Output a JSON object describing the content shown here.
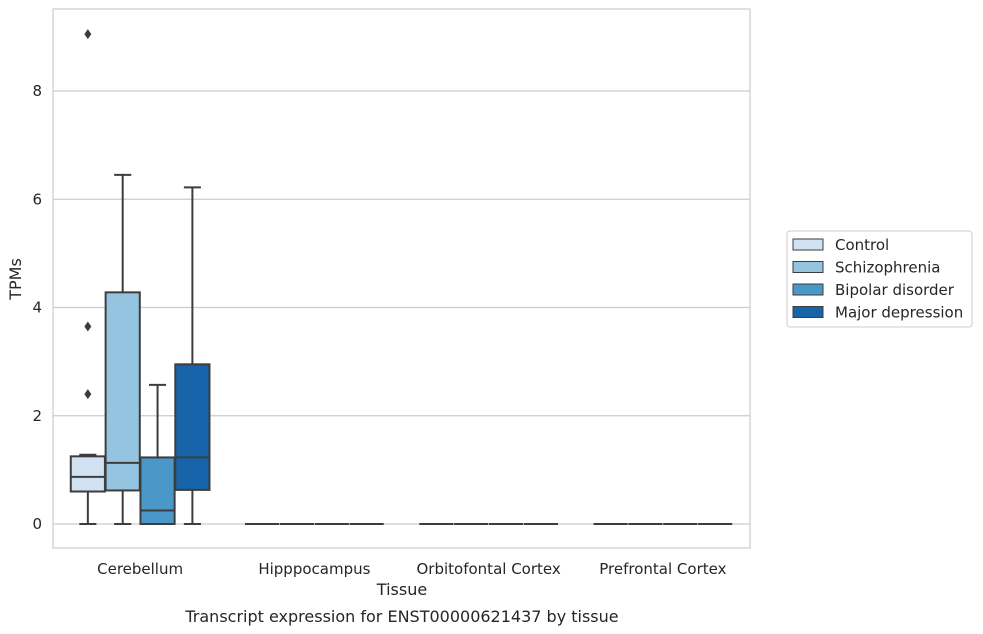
{
  "caption": "Transcript expression for ENST00000621437 by tissue",
  "chart_data": {
    "type": "box",
    "xlabel": "Tissue",
    "ylabel": "TPMs",
    "ylim": [
      -0.45,
      9.6
    ],
    "yticks": [
      0,
      2,
      4,
      6,
      8
    ],
    "grid": "horizontal",
    "legend_placement": "center-right outside",
    "categories": [
      "Cerebellum",
      "Hipppocampus",
      "Orbitofontal Cortex",
      "Prefrontal Cortex"
    ],
    "series": [
      {
        "name": "Control",
        "color": "#d0e1f2",
        "boxes": [
          {
            "whisker_low": 0.0,
            "q1": 0.6,
            "median": 0.87,
            "q3": 1.25,
            "whisker_high": 1.28,
            "outliers": [
              9.05,
              3.65,
              2.4
            ]
          },
          {
            "whisker_low": 0,
            "q1": 0,
            "median": 0,
            "q3": 0,
            "whisker_high": 0,
            "outliers": []
          },
          {
            "whisker_low": 0,
            "q1": 0,
            "median": 0,
            "q3": 0,
            "whisker_high": 0,
            "outliers": []
          },
          {
            "whisker_low": 0,
            "q1": 0,
            "median": 0,
            "q3": 0,
            "whisker_high": 0,
            "outliers": []
          }
        ]
      },
      {
        "name": "Schizophrenia",
        "color": "#94c4df",
        "boxes": [
          {
            "whisker_low": 0.0,
            "q1": 0.62,
            "median": 1.13,
            "q3": 4.28,
            "whisker_high": 6.45,
            "outliers": []
          },
          {
            "whisker_low": 0,
            "q1": 0,
            "median": 0,
            "q3": 0,
            "whisker_high": 0,
            "outliers": []
          },
          {
            "whisker_low": 0,
            "q1": 0,
            "median": 0,
            "q3": 0,
            "whisker_high": 0,
            "outliers": []
          },
          {
            "whisker_low": 0,
            "q1": 0,
            "median": 0,
            "q3": 0,
            "whisker_high": 0,
            "outliers": []
          }
        ]
      },
      {
        "name": "Bipolar disorder",
        "color": "#4a98c9",
        "boxes": [
          {
            "whisker_low": 0.0,
            "q1": 0.0,
            "median": 0.25,
            "q3": 1.23,
            "whisker_high": 2.57,
            "outliers": []
          },
          {
            "whisker_low": 0,
            "q1": 0,
            "median": 0,
            "q3": 0,
            "whisker_high": 0,
            "outliers": []
          },
          {
            "whisker_low": 0,
            "q1": 0,
            "median": 0,
            "q3": 0,
            "whisker_high": 0,
            "outliers": []
          },
          {
            "whisker_low": 0,
            "q1": 0,
            "median": 0,
            "q3": 0,
            "whisker_high": 0,
            "outliers": []
          }
        ]
      },
      {
        "name": "Major depression",
        "color": "#1764ab",
        "boxes": [
          {
            "whisker_low": 0.0,
            "q1": 0.63,
            "median": 1.23,
            "q3": 2.95,
            "whisker_high": 6.22,
            "outliers": []
          },
          {
            "whisker_low": 0,
            "q1": 0,
            "median": 0,
            "q3": 0,
            "whisker_high": 0,
            "outliers": []
          },
          {
            "whisker_low": 0,
            "q1": 0,
            "median": 0,
            "q3": 0,
            "whisker_high": 0,
            "outliers": []
          },
          {
            "whisker_low": 0,
            "q1": 0,
            "median": 0,
            "q3": 0,
            "whisker_high": 0,
            "outliers": []
          }
        ]
      }
    ]
  }
}
